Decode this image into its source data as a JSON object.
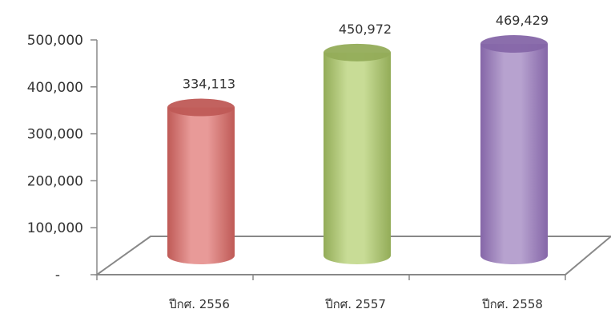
{
  "chart_data": {
    "type": "bar",
    "style": "3d-cylinder",
    "categories": [
      "ปีกศ. 2556",
      "ปีกศ. 2557",
      "ปีกศ. 2558"
    ],
    "values": [
      334113,
      450972,
      469429
    ],
    "data_labels": [
      "334,113",
      "450,972",
      "469,429"
    ],
    "y_ticks": [
      {
        "value": 0,
        "label": "-"
      },
      {
        "value": 100000,
        "label": "100,000"
      },
      {
        "value": 200000,
        "label": "200,000"
      },
      {
        "value": 300000,
        "label": "300,000"
      },
      {
        "value": 400000,
        "label": "400,000"
      },
      {
        "value": 500000,
        "label": "500,000"
      }
    ],
    "ylim": [
      0,
      500000
    ],
    "grid": false,
    "legend": "none",
    "colors": [
      "#e89a98",
      "#c8dc96",
      "#b7a2cf"
    ],
    "dark_colors": [
      "#bf5a56",
      "#93ac58",
      "#8566a8"
    ]
  }
}
